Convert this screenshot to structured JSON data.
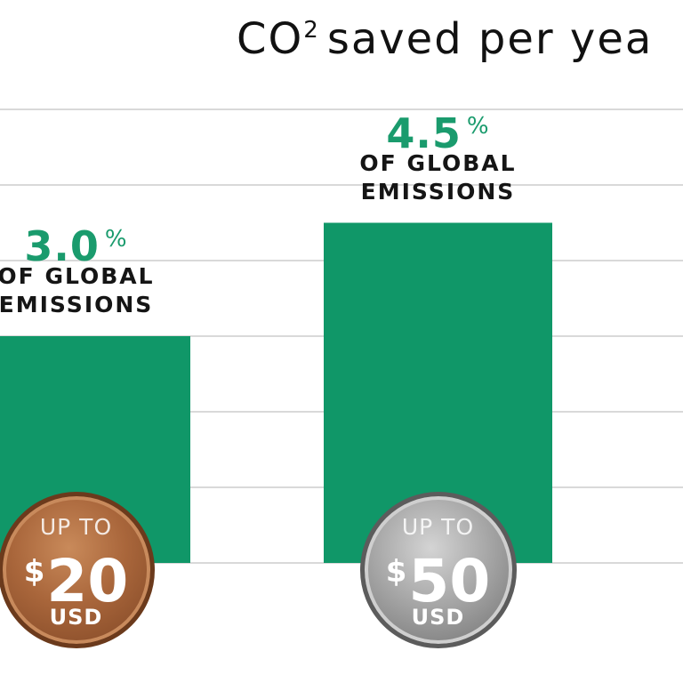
{
  "title": {
    "text": "CO",
    "superscript": "2",
    "rest": "saved per yea"
  },
  "colors": {
    "bar": "#109768",
    "gridline": "#d9d9d9",
    "percent_text": "#1a9b6d",
    "label_text": "#151515"
  },
  "chart_data": {
    "type": "bar",
    "title": "CO² saved per yea",
    "categories": [
      "$20 USD",
      "$50 USD"
    ],
    "values": [
      3.0,
      4.5
    ],
    "unit": "%",
    "ylim": [
      0,
      6
    ],
    "grid": true,
    "gridlines_y": [
      1,
      2,
      3,
      4,
      5,
      6
    ],
    "bars": [
      {
        "value": 3.0,
        "value_label": "3.0",
        "unit_label": "%",
        "sub_label_lines": [
          "OF GLOBAL",
          "EMISSIONS"
        ],
        "coin": {
          "style": "bronze",
          "top_text": "UP TO",
          "currency_symbol": "$",
          "amount": "20",
          "currency_code": "USD"
        }
      },
      {
        "value": 4.5,
        "value_label": "4.5",
        "unit_label": "%",
        "sub_label_lines": [
          "OF GLOBAL",
          "EMISSIONS"
        ],
        "coin": {
          "style": "silver",
          "top_text": "UP TO",
          "currency_symbol": "$",
          "amount": "50",
          "currency_code": "USD"
        }
      }
    ]
  }
}
